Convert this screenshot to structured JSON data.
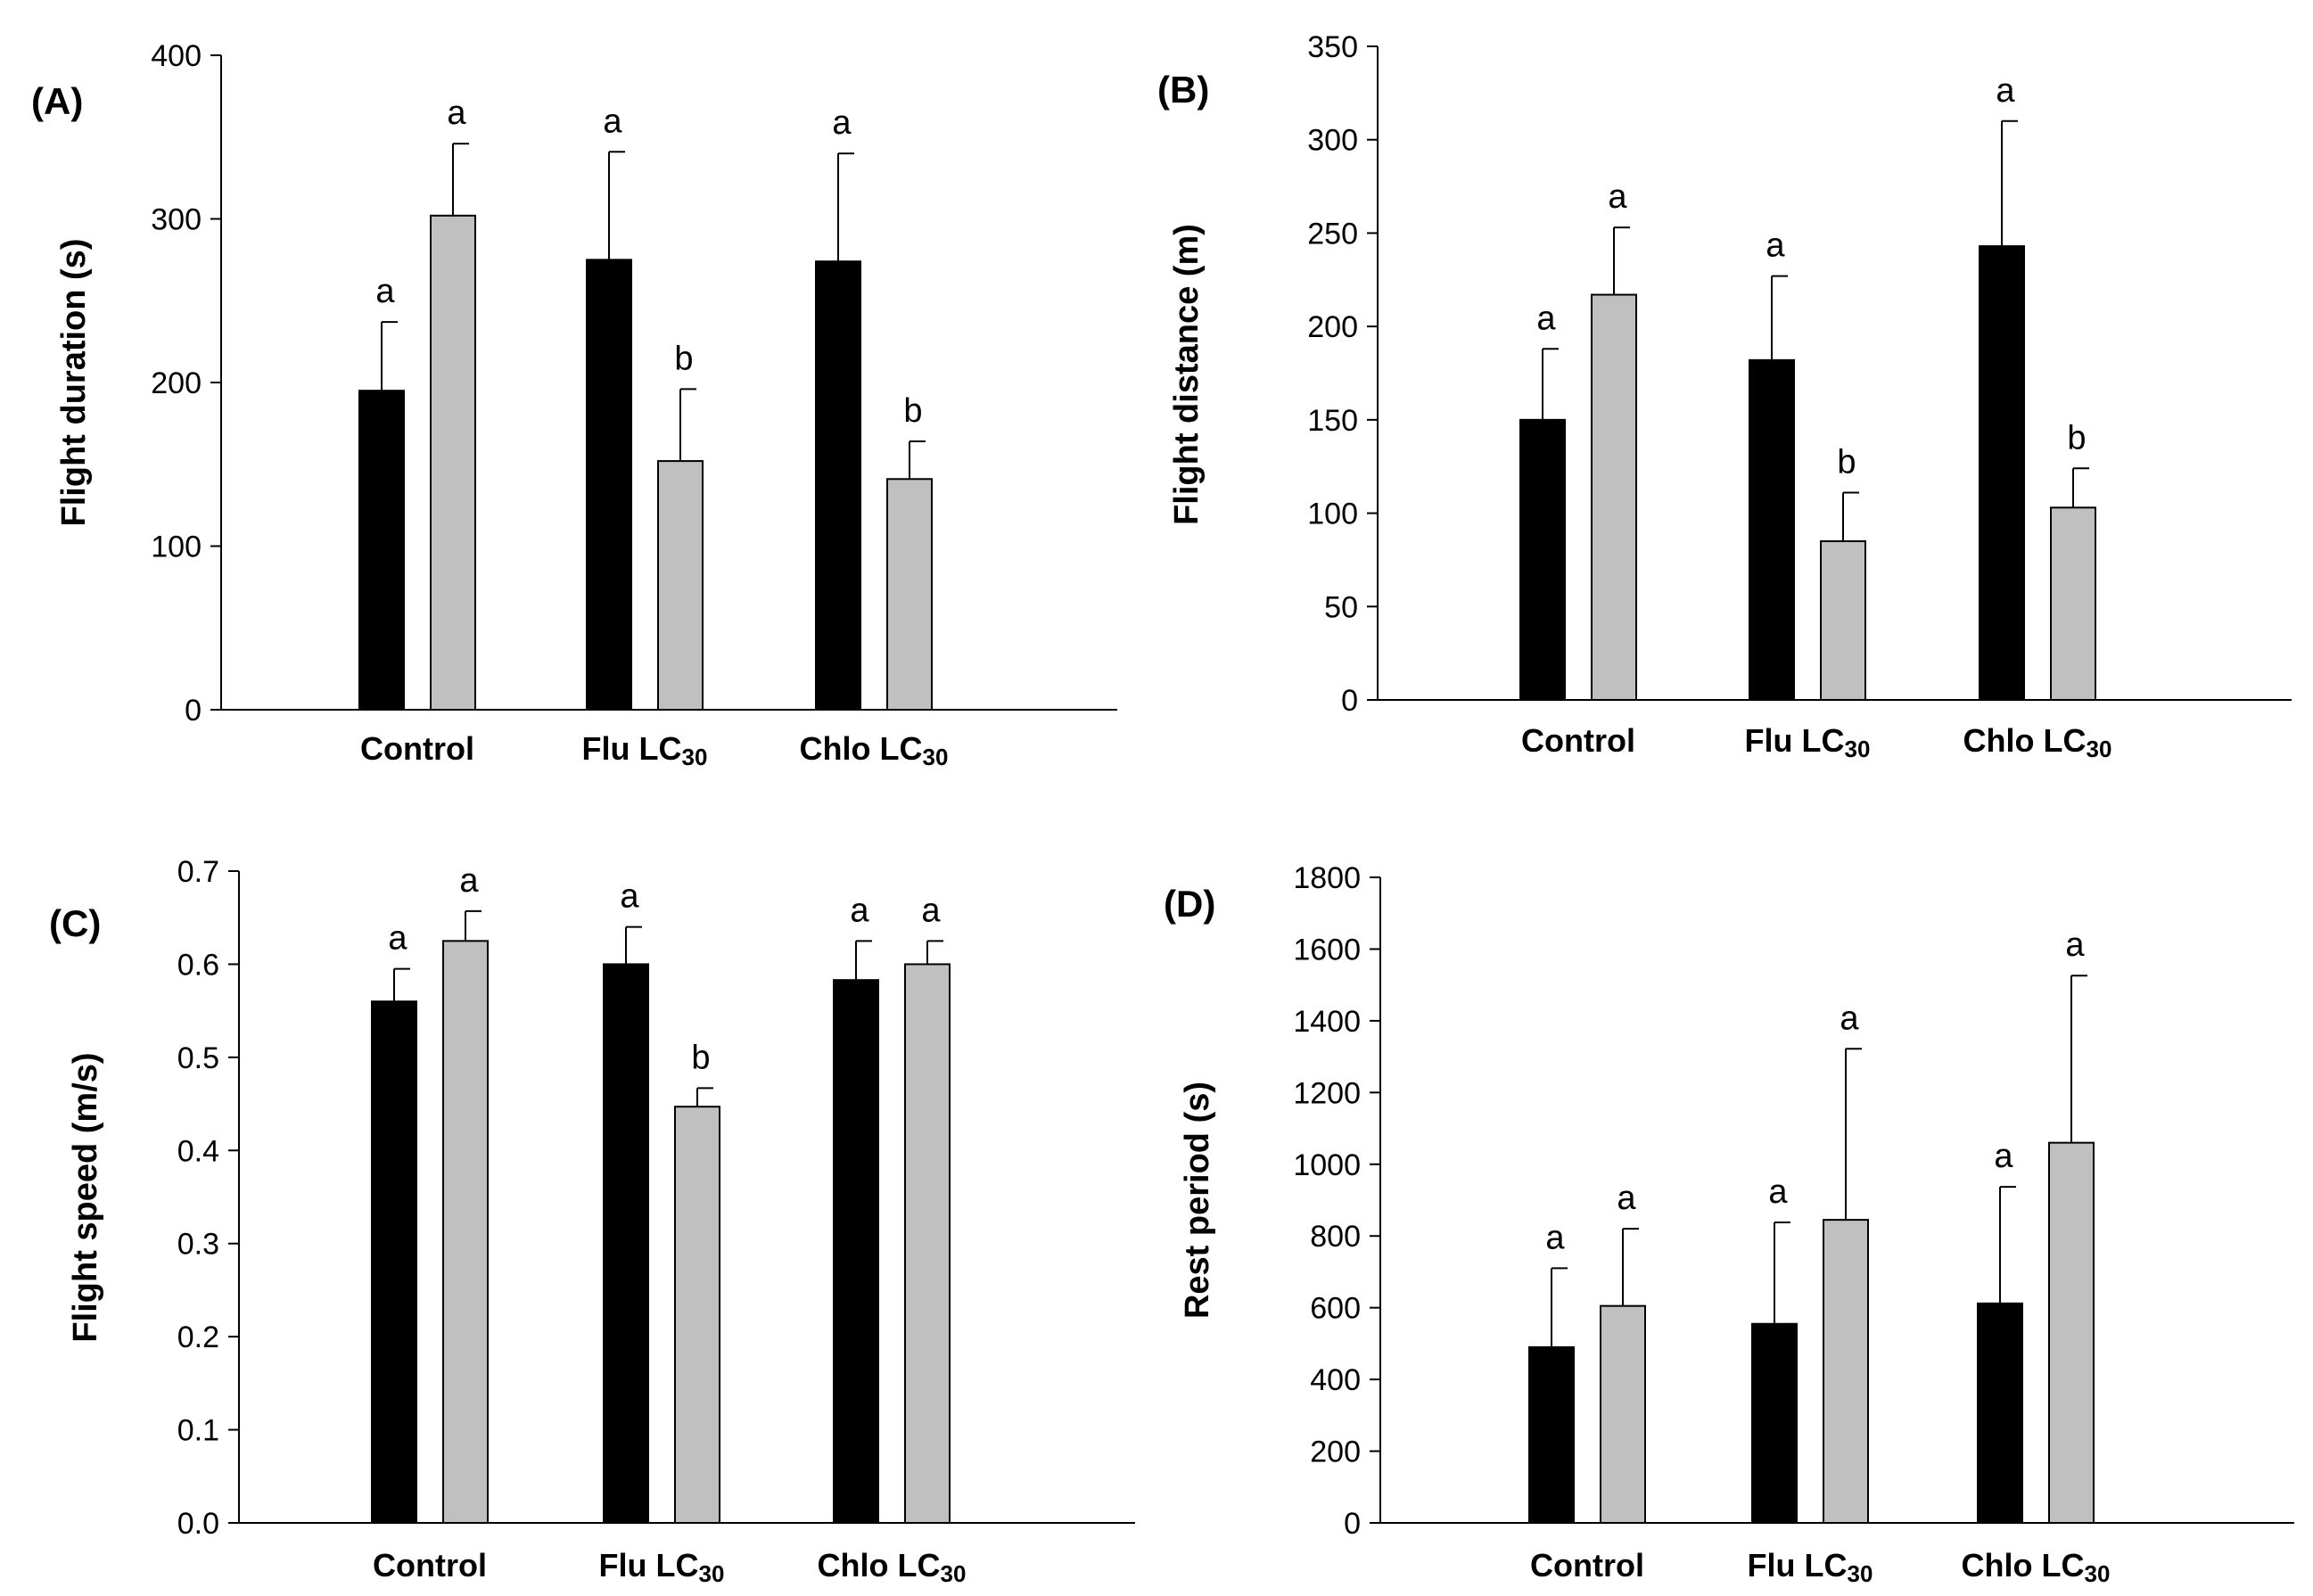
{
  "chart_data": [
    {
      "type": "bar",
      "panel_label": "(A)",
      "ylabel": "Flight  duration (s)",
      "xlabel": "",
      "ylim": [
        0,
        400
      ],
      "yticks": [
        "0",
        "100",
        "200",
        "300",
        "400"
      ],
      "categories": [
        {
          "main": "Control",
          "sub": ""
        },
        {
          "main": "Flu LC",
          "sub": "30"
        },
        {
          "main": "Chlo LC",
          "sub": "30"
        }
      ],
      "series": [
        {
          "name": "series-black",
          "color": "#000000",
          "values": [
            195,
            275,
            274
          ],
          "errors": [
            42,
            66,
            66
          ],
          "letters": [
            "a",
            "a",
            "a"
          ]
        },
        {
          "name": "series-gray",
          "color": "#c0c0c0",
          "values": [
            302,
            152,
            141
          ],
          "errors": [
            44,
            44,
            23
          ],
          "letters": [
            "a",
            "b",
            "b"
          ]
        }
      ]
    },
    {
      "type": "bar",
      "panel_label": "(B)",
      "ylabel": "Flight  distance (m)",
      "xlabel": "",
      "ylim": [
        0,
        350
      ],
      "yticks": [
        "0",
        "50",
        "100",
        "150",
        "200",
        "250",
        "300",
        "350"
      ],
      "categories": [
        {
          "main": "Control",
          "sub": ""
        },
        {
          "main": "Flu LC",
          "sub": "30"
        },
        {
          "main": "Chlo LC",
          "sub": "30"
        }
      ],
      "series": [
        {
          "name": "series-black",
          "color": "#000000",
          "values": [
            150,
            182,
            243
          ],
          "errors": [
            38,
            45,
            67
          ],
          "letters": [
            "a",
            "a",
            "a"
          ]
        },
        {
          "name": "series-gray",
          "color": "#c0c0c0",
          "values": [
            217,
            85,
            103
          ],
          "errors": [
            36,
            26,
            21
          ],
          "letters": [
            "a",
            "b",
            "b"
          ]
        }
      ]
    },
    {
      "type": "bar",
      "panel_label": "(C)",
      "ylabel": "Flight  speed (m/s)",
      "xlabel": "",
      "ylim": [
        0,
        0.7
      ],
      "yticks": [
        "0.0",
        "0.1",
        "0.2",
        "0.3",
        "0.4",
        "0.5",
        "0.6",
        "0.7"
      ],
      "categories": [
        {
          "main": "Control",
          "sub": ""
        },
        {
          "main": "Flu LC",
          "sub": "30"
        },
        {
          "main": "Chlo LC",
          "sub": "30"
        }
      ],
      "series": [
        {
          "name": "series-black",
          "color": "#000000",
          "values": [
            0.56,
            0.6,
            0.583
          ],
          "errors": [
            0.035,
            0.04,
            0.042
          ],
          "letters": [
            "a",
            "a",
            "a"
          ]
        },
        {
          "name": "series-gray",
          "color": "#c0c0c0",
          "values": [
            0.625,
            0.447,
            0.6
          ],
          "errors": [
            0.032,
            0.02,
            0.025
          ],
          "letters": [
            "a",
            "b",
            "a"
          ]
        }
      ]
    },
    {
      "type": "bar",
      "panel_label": "(D)",
      "ylabel": "Rest period (s)",
      "xlabel": "",
      "ylim": [
        0,
        1800
      ],
      "yticks": [
        "0",
        "200",
        "400",
        "600",
        "800",
        "1000",
        "1200",
        "1400",
        "1600",
        "1800"
      ],
      "categories": [
        {
          "main": "Control",
          "sub": ""
        },
        {
          "main": "Flu LC",
          "sub": "30"
        },
        {
          "main": "Chlo LC",
          "sub": "30"
        }
      ],
      "series": [
        {
          "name": "series-black",
          "color": "#000000",
          "values": [
            490,
            555,
            612
          ],
          "errors": [
            220,
            283,
            325
          ],
          "letters": [
            "a",
            "a",
            "a"
          ]
        },
        {
          "name": "series-gray",
          "color": "#c0c0c0",
          "values": [
            605,
            845,
            1060
          ],
          "errors": [
            215,
            477,
            466
          ],
          "letters": [
            "a",
            "a",
            "a"
          ]
        }
      ]
    }
  ]
}
